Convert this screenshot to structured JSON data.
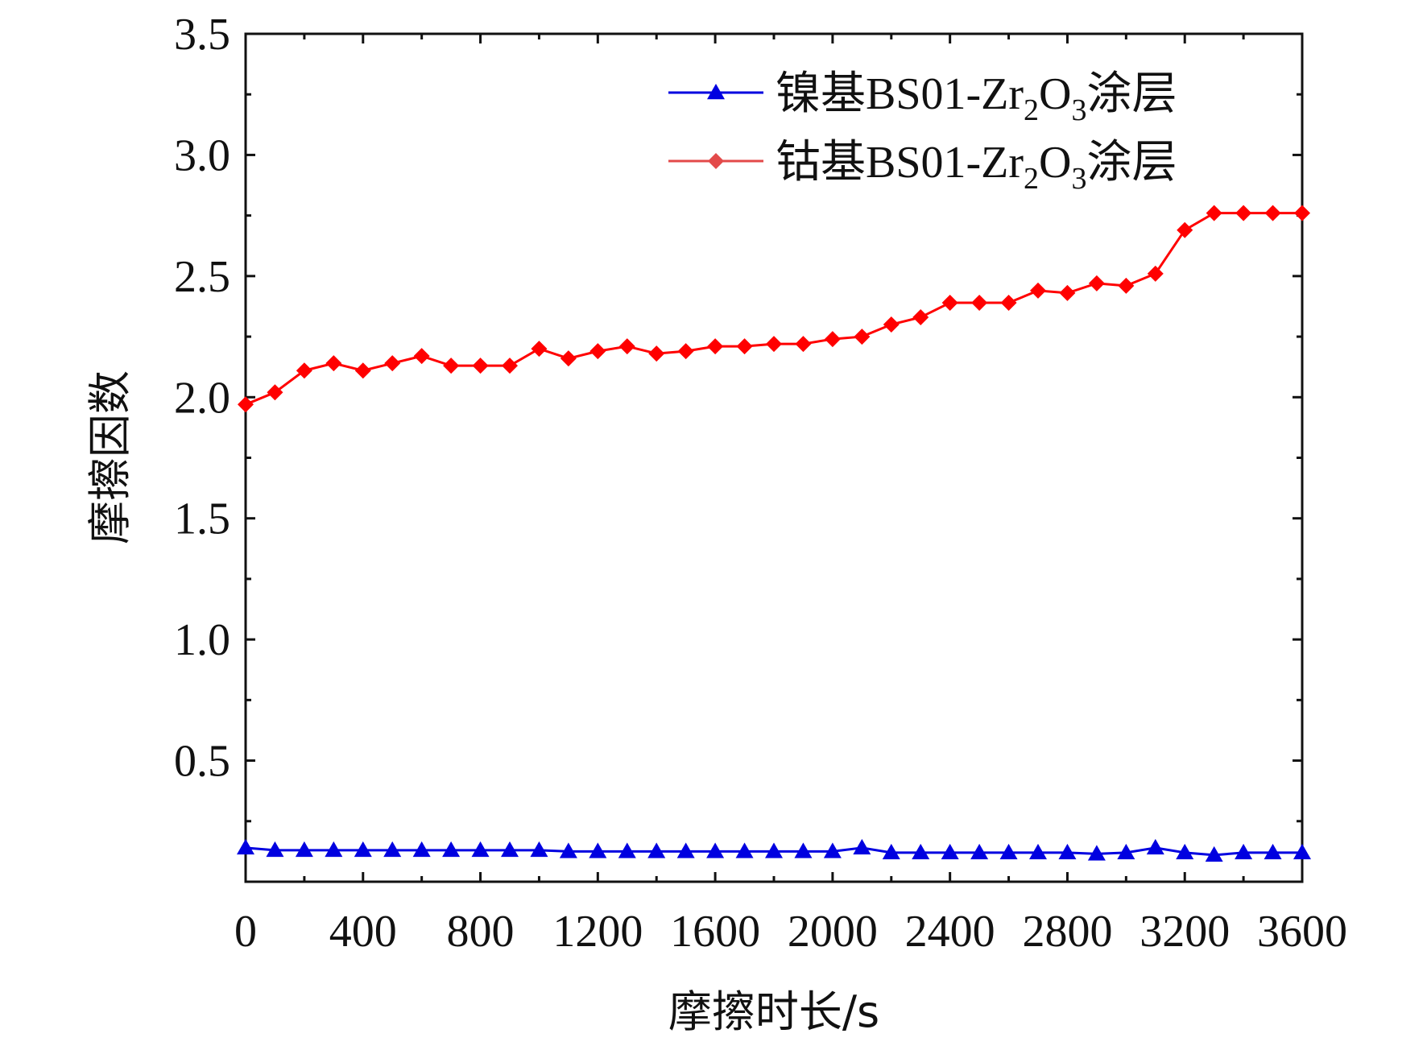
{
  "chart_data": {
    "type": "line",
    "xlabel": "摩擦时长/s",
    "ylabel": "摩擦因数",
    "xlim": [
      0,
      3600
    ],
    "ylim": [
      0,
      3.5
    ],
    "x_ticks": [
      "0",
      "400",
      "800",
      "1200",
      "1600",
      "2000",
      "2400",
      "2800",
      "3200",
      "3600"
    ],
    "y_ticks": [
      "0.5",
      "1.0",
      "1.5",
      "2.0",
      "2.5",
      "3.0",
      "3.5"
    ],
    "grid": false,
    "legend_position": "top-right",
    "x": [
      0,
      100,
      200,
      300,
      400,
      500,
      600,
      700,
      800,
      900,
      1000,
      1100,
      1200,
      1300,
      1400,
      1500,
      1600,
      1700,
      1800,
      1900,
      2000,
      2100,
      2200,
      2300,
      2400,
      2500,
      2600,
      2700,
      2800,
      2900,
      3000,
      3100,
      3200,
      3300,
      3400,
      3500,
      3600
    ],
    "series": [
      {
        "name": "镍基BS01-Zr2O3涂层",
        "legend": {
          "pre": "镍基BS01-Zr",
          "sub1": "2",
          "mid": "O",
          "sub2": "3",
          "post": "涂层"
        },
        "color": "#0000e0",
        "marker": "triangle",
        "values": [
          0.14,
          0.13,
          0.13,
          0.13,
          0.13,
          0.13,
          0.13,
          0.13,
          0.13,
          0.13,
          0.13,
          0.125,
          0.125,
          0.125,
          0.125,
          0.125,
          0.125,
          0.125,
          0.125,
          0.125,
          0.125,
          0.14,
          0.12,
          0.12,
          0.12,
          0.12,
          0.12,
          0.12,
          0.12,
          0.115,
          0.12,
          0.14,
          0.12,
          0.11,
          0.12,
          0.12,
          0.12
        ]
      },
      {
        "name": "钴基BS01-Zr2O3涂层",
        "legend": {
          "pre": "钴基BS01-Zr",
          "sub1": "2",
          "mid": "O",
          "sub2": "3",
          "post": "涂层"
        },
        "color": "#ff0000",
        "marker": "diamond",
        "values": [
          1.97,
          2.02,
          2.11,
          2.14,
          2.11,
          2.14,
          2.17,
          2.13,
          2.13,
          2.13,
          2.2,
          2.16,
          2.19,
          2.21,
          2.18,
          2.19,
          2.21,
          2.21,
          2.22,
          2.22,
          2.24,
          2.25,
          2.3,
          2.33,
          2.39,
          2.39,
          2.39,
          2.44,
          2.43,
          2.47,
          2.46,
          2.51,
          2.69,
          2.76,
          2.76,
          2.76,
          2.76
        ]
      }
    ]
  }
}
